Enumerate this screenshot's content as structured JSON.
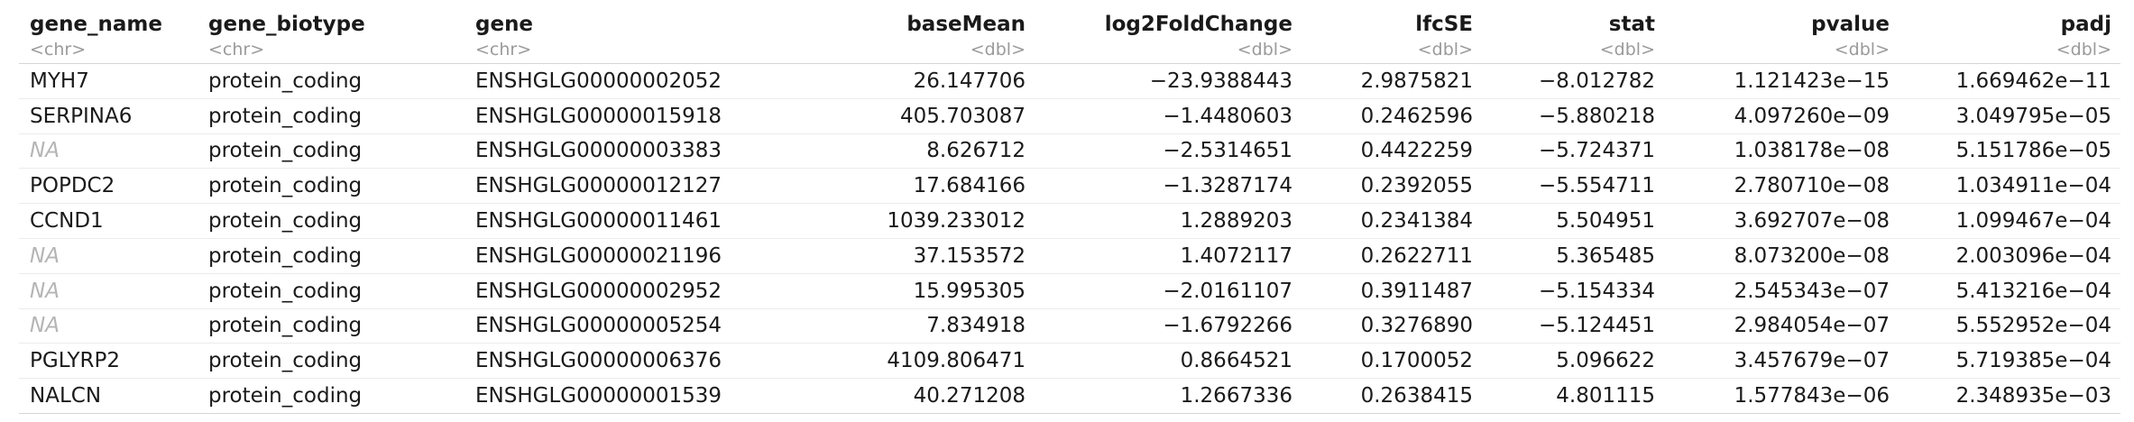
{
  "columns": [
    {
      "name": "gene_name",
      "type": "<chr>",
      "align": "left"
    },
    {
      "name": "gene_biotype",
      "type": "<chr>",
      "align": "left"
    },
    {
      "name": "gene",
      "type": "<chr>",
      "align": "left"
    },
    {
      "name": "baseMean",
      "type": "<dbl>",
      "align": "right"
    },
    {
      "name": "log2FoldChange",
      "type": "<dbl>",
      "align": "right"
    },
    {
      "name": "lfcSE",
      "type": "<dbl>",
      "align": "right"
    },
    {
      "name": "stat",
      "type": "<dbl>",
      "align": "right"
    },
    {
      "name": "pvalue",
      "type": "<dbl>",
      "align": "right"
    },
    {
      "name": "padj",
      "type": "<dbl>",
      "align": "right"
    }
  ],
  "rows": [
    [
      "MYH7",
      "protein_coding",
      "ENSHGLG00000002052",
      "26.147706",
      "−23.9388443",
      "2.9875821",
      "−8.012782",
      "1.121423e−15",
      "1.669462e−11"
    ],
    [
      "SERPINA6",
      "protein_coding",
      "ENSHGLG00000015918",
      "405.703087",
      "−1.4480603",
      "0.2462596",
      "−5.880218",
      "4.097260e−09",
      "3.049795e−05"
    ],
    [
      "NA",
      "protein_coding",
      "ENSHGLG00000003383",
      "8.626712",
      "−2.5314651",
      "0.4422259",
      "−5.724371",
      "1.038178e−08",
      "5.151786e−05"
    ],
    [
      "POPDC2",
      "protein_coding",
      "ENSHGLG00000012127",
      "17.684166",
      "−1.3287174",
      "0.2392055",
      "−5.554711",
      "2.780710e−08",
      "1.034911e−04"
    ],
    [
      "CCND1",
      "protein_coding",
      "ENSHGLG00000011461",
      "1039.233012",
      "1.2889203",
      "0.2341384",
      "5.504951",
      "3.692707e−08",
      "1.099467e−04"
    ],
    [
      "NA",
      "protein_coding",
      "ENSHGLG00000021196",
      "37.153572",
      "1.4072117",
      "0.2622711",
      "5.365485",
      "8.073200e−08",
      "2.003096e−04"
    ],
    [
      "NA",
      "protein_coding",
      "ENSHGLG00000002952",
      "15.995305",
      "−2.0161107",
      "0.3911487",
      "−5.154334",
      "2.545343e−07",
      "5.413216e−04"
    ],
    [
      "NA",
      "protein_coding",
      "ENSHGLG00000005254",
      "7.834918",
      "−1.6792266",
      "0.3276890",
      "−5.124451",
      "2.984054e−07",
      "5.552952e−04"
    ],
    [
      "PGLYRP2",
      "protein_coding",
      "ENSHGLG00000006376",
      "4109.806471",
      "0.8664521",
      "0.1700052",
      "5.096622",
      "3.457679e−07",
      "5.719385e−04"
    ],
    [
      "NALCN",
      "protein_coding",
      "ENSHGLG00000001539",
      "40.271208",
      "1.2667336",
      "0.2638415",
      "4.801115",
      "1.577843e−06",
      "2.348935e−03"
    ]
  ],
  "styles": {
    "header_type_color": "#9a9a9a",
    "na_color": "#b5b5b5",
    "border_color": "#d6d6d6",
    "row_separator_color": "#ebebeb"
  }
}
